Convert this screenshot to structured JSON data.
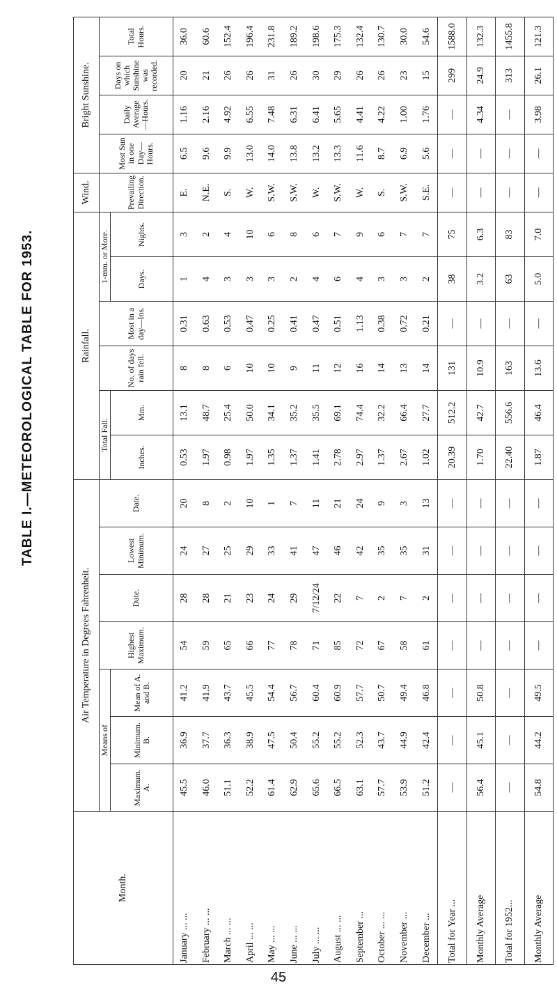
{
  "title": "TABLE I.—METEOROLOGICAL TABLE FOR 1953.",
  "page": "45",
  "header": {
    "month": "Month.",
    "air": "Air Temperature in Degrees Fahrenheit.",
    "means": "Means of",
    "max_a": "Maximum. A.",
    "min_b": "Minimum. B.",
    "mean_ab": "Mean of A. and B.",
    "highest": "Highest Maximum.",
    "date1": "Date.",
    "lowest": "Lowest Minimum.",
    "date2": "Date.",
    "rainfall": "Rainfall.",
    "total_fall": "Total Fall.",
    "inches": "Inches.",
    "mm": "Mm.",
    "rain_days": "No. of days rain fell.",
    "most_day": "Most in a day—Ins.",
    "one_mm": "1-mm. or More.",
    "days": "Days.",
    "nights": "Nights.",
    "wind": "Wind.",
    "direction": "Prevailing Direction.",
    "sunshine": "Bright Sunshine.",
    "most_sun": "Most Sun in one Day—Hours.",
    "daily_avg": "Daily Average—Hours.",
    "sun_days": "Days on which Sunshine was recorded.",
    "total_hours": "Total Hours."
  },
  "rows": [
    [
      "January ... ...",
      "45.5",
      "36.9",
      "41.2",
      "54",
      "28",
      "24",
      "20",
      "0.53",
      "13.1",
      "8",
      "0.31",
      "1",
      "3",
      "E.",
      "6.5",
      "1.16",
      "20",
      "36.0"
    ],
    [
      "February ... ...",
      "46.0",
      "37.7",
      "41.9",
      "59",
      "28",
      "27",
      "8",
      "1.97",
      "48.7",
      "8",
      "0.63",
      "4",
      "2",
      "N.E.",
      "9.6",
      "2.16",
      "21",
      "60.6"
    ],
    [
      "March ... ...",
      "51.1",
      "36.3",
      "43.7",
      "65",
      "21",
      "25",
      "2",
      "0.98",
      "25.4",
      "6",
      "0.53",
      "3",
      "4",
      "S.",
      "9.9",
      "4.92",
      "26",
      "152.4"
    ],
    [
      "April ... ...",
      "52.2",
      "38.9",
      "45.5",
      "66",
      "23",
      "29",
      "10",
      "1.97",
      "50.0",
      "10",
      "0.47",
      "3",
      "10",
      "W.",
      "13.0",
      "6.55",
      "26",
      "196.4"
    ],
    [
      "May ... ...",
      "61.4",
      "47.5",
      "54.4",
      "77",
      "24",
      "33",
      "1",
      "1.35",
      "34.1",
      "10",
      "0.25",
      "3",
      "6",
      "S.W.",
      "14.0",
      "7.48",
      "31",
      "231.8"
    ],
    [
      "June ... ...",
      "62.9",
      "50.4",
      "56.7",
      "78",
      "29",
      "41",
      "7",
      "1.37",
      "35.2",
      "9",
      "0.41",
      "2",
      "8",
      "S.W.",
      "13.8",
      "6.31",
      "26",
      "189.2"
    ],
    [
      "July ... ...",
      "65.6",
      "55.2",
      "60.4",
      "71",
      "7/12/24",
      "47",
      "11",
      "1.41",
      "35.5",
      "11",
      "0.47",
      "4",
      "6",
      "W.",
      "13.2",
      "6.41",
      "30",
      "198.6"
    ],
    [
      "August ... ...",
      "66.5",
      "55.2",
      "60.9",
      "85",
      "22",
      "46",
      "21",
      "2.78",
      "69.1",
      "12",
      "0.51",
      "6",
      "7",
      "S.W.",
      "13.3",
      "5.65",
      "29",
      "175.3"
    ],
    [
      "September ...",
      "63.1",
      "52.3",
      "57.7",
      "72",
      "7",
      "42",
      "24",
      "2.97",
      "74.4",
      "16",
      "1.13",
      "4",
      "9",
      "W.",
      "11.6",
      "4.41",
      "26",
      "132.4"
    ],
    [
      "October ... ...",
      "57.7",
      "43.7",
      "50.7",
      "67",
      "2",
      "35",
      "9",
      "1.37",
      "32.2",
      "14",
      "0.38",
      "3",
      "6",
      "S.",
      "8.7",
      "4.22",
      "26",
      "130.7"
    ],
    [
      "November ...",
      "53.9",
      "44.9",
      "49.4",
      "58",
      "7",
      "35",
      "3",
      "2.67",
      "66.4",
      "13",
      "0.72",
      "3",
      "7",
      "S.W.",
      "6.9",
      "1.00",
      "23",
      "30.0"
    ],
    [
      "December ...",
      "51.2",
      "42.4",
      "46.8",
      "61",
      "2",
      "31",
      "13",
      "1.02",
      "27.7",
      "14",
      "0.21",
      "2",
      "7",
      "S.E.",
      "5.6",
      "1.76",
      "15",
      "54.6"
    ]
  ],
  "totals": [
    [
      "Total for Year ...",
      "—",
      "—",
      "—",
      "—",
      "—",
      "—",
      "—",
      "20.39",
      "512.2",
      "131",
      "—",
      "38",
      "75",
      "—",
      "—",
      "—",
      "299",
      "1588.0"
    ],
    [
      "Monthly Average",
      "56.4",
      "45.1",
      "50.8",
      "—",
      "—",
      "—",
      "—",
      "1.70",
      "42.7",
      "10.9",
      "—",
      "3.2",
      "6.3",
      "—",
      "—",
      "4.34",
      "24.9",
      "132.3"
    ],
    [
      "Total for 1952...",
      "—",
      "—",
      "—",
      "—",
      "—",
      "—",
      "—",
      "22.40",
      "556.6",
      "163",
      "—",
      "63",
      "83",
      "—",
      "—",
      "—",
      "313",
      "1455.8"
    ],
    [
      "Monthly Average",
      "54.8",
      "44.2",
      "49.5",
      "—",
      "—",
      "—",
      "—",
      "1.87",
      "46.4",
      "13.6",
      "—",
      "5.0",
      "7.0",
      "—",
      "—",
      "3.98",
      "26.1",
      "121.3"
    ]
  ]
}
